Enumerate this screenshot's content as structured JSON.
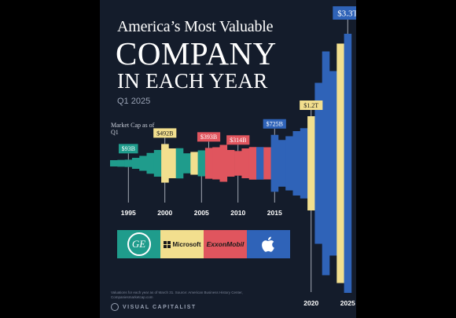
{
  "title": {
    "line1": "America’s Most Valuable",
    "line2": "COMPANY",
    "line3": "IN EACH YEAR"
  },
  "subtitle": "Q1 2025",
  "market_cap_label": "Market Cap as of Q1",
  "companies": [
    {
      "name": "General Electric",
      "logo_text": "GE",
      "color": "#1f9c8c"
    },
    {
      "name": "Microsoft",
      "logo_text": "Microsoft",
      "color": "#f2df8e"
    },
    {
      "name": "ExxonMobil",
      "logo_text": "ExxonMobil",
      "color": "#e0555e"
    },
    {
      "name": "Apple",
      "logo_text": "",
      "color": "#2f63b8"
    }
  ],
  "footnote": "Valuations for each year as of March 31. Source: American Business History Center, Companiesmarketcap.com",
  "brand": "VISUAL CAPITALIST",
  "chart_data": {
    "type": "bar",
    "x": [
      1993,
      1994,
      1995,
      1996,
      1997,
      1998,
      1999,
      2000,
      2001,
      2002,
      2003,
      2004,
      2005,
      2006,
      2007,
      2008,
      2009,
      2010,
      2011,
      2012,
      2013,
      2014,
      2015,
      2016,
      2017,
      2018,
      2019,
      2020,
      2021,
      2022,
      2023,
      2024,
      2025
    ],
    "company": [
      "ge",
      "ge",
      "ge",
      "ge",
      "ge",
      "ge",
      "ge",
      "msft",
      "msft",
      "ge",
      "ge",
      "msft",
      "ge",
      "xom",
      "xom",
      "xom",
      "xom",
      "xom",
      "xom",
      "xom",
      "aapl",
      "xom",
      "aapl",
      "aapl",
      "aapl",
      "aapl",
      "aapl",
      "msft",
      "aapl",
      "aapl",
      "aapl",
      "msft",
      "aapl"
    ],
    "values": [
      75,
      87,
      93,
      140,
      190,
      265,
      340,
      492,
      380,
      385,
      255,
      290,
      330,
      393,
      410,
      470,
      340,
      314,
      380,
      415,
      415,
      410,
      725,
      595,
      690,
      820,
      895,
      1200,
      2050,
      2850,
      2350,
      3050,
      3300
    ],
    "value_labels": [
      {
        "x": 1995,
        "label": "$93B",
        "company": "ge"
      },
      {
        "x": 2000,
        "label": "$492B",
        "company": "msft"
      },
      {
        "x": 2006,
        "label": "$393B",
        "company": "xom"
      },
      {
        "x": 2010,
        "label": "$314B",
        "company": "xom"
      },
      {
        "x": 2015,
        "label": "$725B",
        "company": "aapl"
      },
      {
        "x": 2020,
        "label": "$1.2T",
        "company": "msft"
      },
      {
        "x": 2025,
        "label": "$3.3T",
        "company": "aapl"
      }
    ],
    "x_tick_labels": [
      "1995",
      "2000",
      "2005",
      "2010",
      "2015",
      "2020",
      "2025"
    ],
    "colors": {
      "ge": "#1f9c8c",
      "msft": "#f2df8e",
      "xom": "#e0555e",
      "aapl": "#2f63b8"
    },
    "label_colors": {
      "ge": "#1f9c8c",
      "msft": "#f2df8e",
      "xom": "#e0555e",
      "aapl": "#2f63b8"
    },
    "baseline": "centered",
    "grid": false
  }
}
